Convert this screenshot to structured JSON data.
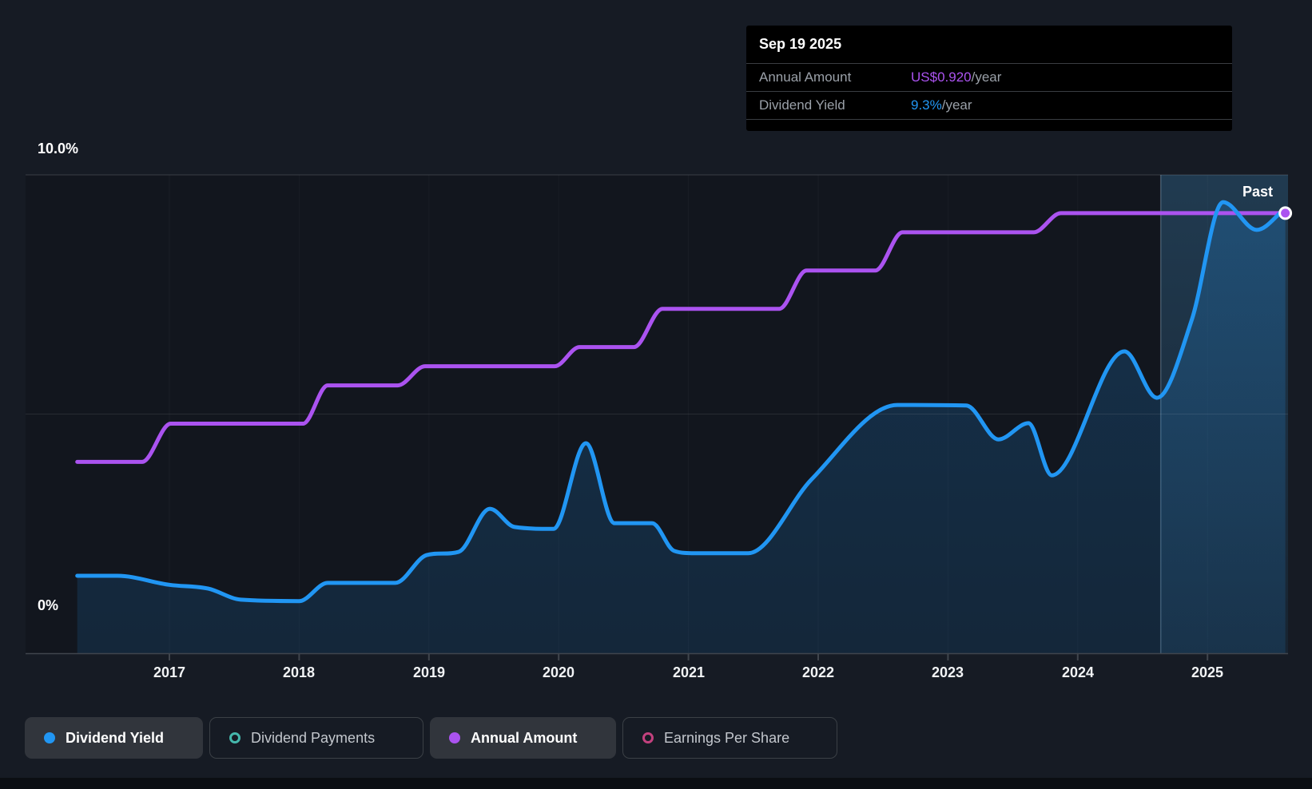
{
  "tooltip": {
    "date": "Sep 19 2025",
    "rows": [
      {
        "label": "Annual Amount",
        "value": "US$0.920",
        "suffix": "/year",
        "value_color": "#ab53f0"
      },
      {
        "label": "Dividend Yield",
        "value": "9.3%",
        "suffix": "/year",
        "value_color": "#2196f3"
      }
    ]
  },
  "axes": {
    "y_top_label": "10.0%",
    "y_bottom_label": "0%",
    "x_ticks": [
      "2017",
      "2018",
      "2019",
      "2020",
      "2021",
      "2022",
      "2023",
      "2024",
      "2025"
    ]
  },
  "past_label": "Past",
  "legend": {
    "items": [
      {
        "label": "Dividend Yield",
        "marker": "filled",
        "color": "#2196f3",
        "active": true
      },
      {
        "label": "Dividend Payments",
        "marker": "ring",
        "color": "#45b7ac",
        "active": false
      },
      {
        "label": "Annual Amount",
        "marker": "filled",
        "color": "#ab53f0",
        "active": true
      },
      {
        "label": "Earnings Per Share",
        "marker": "ring",
        "color": "#c2417e",
        "active": false
      }
    ]
  },
  "colors": {
    "dividend_yield_line": "#2196f3",
    "annual_amount_line": "#ab53f0",
    "page_background": "#161b24",
    "plot_background": "#12161e",
    "tooltip_background": "#000000",
    "gridline": "#ffffff",
    "past_region_tint": "#4aa3e0",
    "end_marker_ring": "#ffffff"
  },
  "chart_data": {
    "type": "line",
    "title": "Dividend history",
    "x_axis": {
      "ticks": [
        2017,
        2018,
        2019,
        2020,
        2021,
        2022,
        2023,
        2024,
        2025
      ]
    },
    "y_axis": {
      "unit": "%",
      "min": 0,
      "max": 10,
      "labeled_gridlines": [
        0,
        10
      ],
      "unlabeled_gridlines": [
        5
      ]
    },
    "x_start": 2016.29,
    "x_end": 2025.6,
    "past_region_start": 2024.64,
    "legend_position": "bottom",
    "series": [
      {
        "name": "Dividend Yield",
        "unit": "%",
        "color": "#2196f3",
        "area_fill": true,
        "end_value_label": "9.3%/year",
        "points": [
          [
            2016.29,
            1.62
          ],
          [
            2016.6,
            1.62
          ],
          [
            2017.0,
            1.43
          ],
          [
            2017.3,
            1.35
          ],
          [
            2017.55,
            1.12
          ],
          [
            2018.0,
            1.09
          ],
          [
            2018.22,
            1.47
          ],
          [
            2018.74,
            1.47
          ],
          [
            2018.98,
            2.05
          ],
          [
            2019.23,
            2.12
          ],
          [
            2019.47,
            3.02
          ],
          [
            2019.66,
            2.64
          ],
          [
            2019.96,
            2.6
          ],
          [
            2020.21,
            4.39
          ],
          [
            2020.43,
            2.72
          ],
          [
            2020.72,
            2.72
          ],
          [
            2020.89,
            2.14
          ],
          [
            2021.05,
            2.09
          ],
          [
            2021.46,
            2.09
          ],
          [
            2021.95,
            3.64
          ],
          [
            2022.61,
            5.19
          ],
          [
            2023.14,
            5.18
          ],
          [
            2023.39,
            4.47
          ],
          [
            2023.62,
            4.81
          ],
          [
            2023.8,
            3.72
          ],
          [
            2024.36,
            6.31
          ],
          [
            2024.61,
            5.34
          ],
          [
            2024.88,
            6.98
          ],
          [
            2025.12,
            9.43
          ],
          [
            2025.38,
            8.85
          ],
          [
            2025.6,
            9.3
          ]
        ]
      },
      {
        "name": "Annual Amount",
        "unit": "US$/year",
        "color": "#ab53f0",
        "area_fill": false,
        "scale_note": "US$0.10 per 1% on shared axis",
        "end_value_label": "US$0.920/year",
        "end_marker": true,
        "points": [
          [
            2016.29,
            0.4
          ],
          [
            2016.79,
            0.4
          ],
          [
            2017.01,
            0.48
          ],
          [
            2018.03,
            0.48
          ],
          [
            2018.22,
            0.56
          ],
          [
            2018.76,
            0.56
          ],
          [
            2018.97,
            0.6
          ],
          [
            2019.97,
            0.6
          ],
          [
            2020.16,
            0.64
          ],
          [
            2020.58,
            0.64
          ],
          [
            2020.8,
            0.72
          ],
          [
            2021.7,
            0.72
          ],
          [
            2021.91,
            0.8
          ],
          [
            2022.44,
            0.8
          ],
          [
            2022.65,
            0.88
          ],
          [
            2023.66,
            0.88
          ],
          [
            2023.87,
            0.92
          ],
          [
            2025.6,
            0.92
          ]
        ]
      },
      {
        "name": "Dividend Payments",
        "color": "#45b7ac",
        "active": false,
        "points": []
      },
      {
        "name": "Earnings Per Share",
        "color": "#c2417e",
        "active": false,
        "points": []
      }
    ]
  }
}
